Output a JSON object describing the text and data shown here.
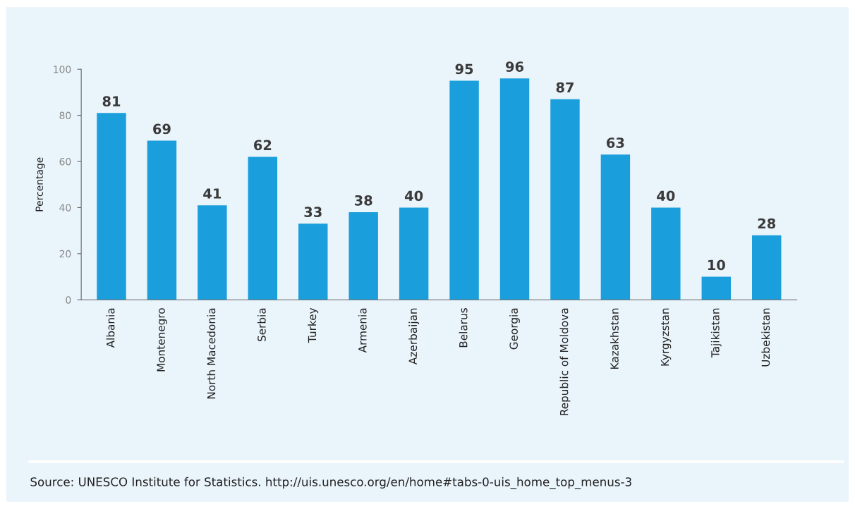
{
  "chart_data": {
    "type": "bar",
    "ylabel": "Percentage",
    "categories": [
      "Albania",
      "Montenegro",
      "North Macedonia",
      "Serbia",
      "Turkey",
      "Armenia",
      "Azerbaijan",
      "Belarus",
      "Georgia",
      "Republic of Moldova",
      "Kazakhstan",
      "Kyrgyzstan",
      "Tajikistan",
      "Uzbekistan"
    ],
    "values": [
      81,
      69,
      41,
      62,
      33,
      38,
      40,
      95,
      96,
      87,
      63,
      40,
      10,
      28
    ],
    "color": "#1a9fdc",
    "ylim": [
      0,
      100
    ],
    "yticks": [
      0,
      20,
      40,
      60,
      80,
      100
    ],
    "grid": false,
    "data_labels": true,
    "annotations": [
      "Source: UNESCO Institute for Statistics. http://uis.unesco.org/en/home#tabs-0-uis_home_top_menus-3"
    ]
  }
}
